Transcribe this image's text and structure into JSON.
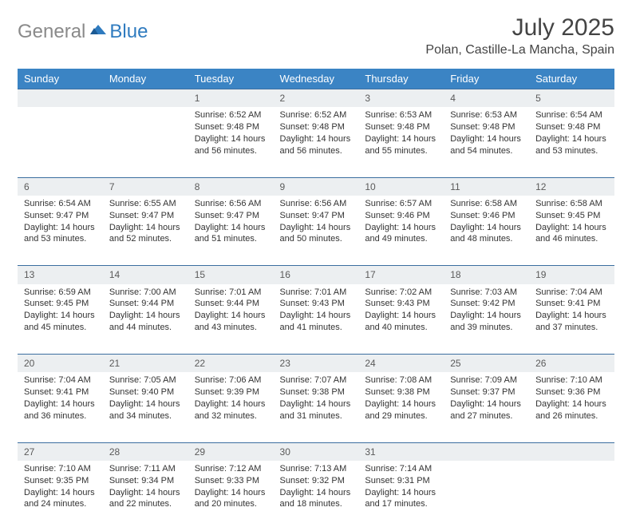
{
  "brand": {
    "g": "General",
    "b": "Blue"
  },
  "title": "July 2025",
  "location": "Polan, Castille-La Mancha, Spain",
  "colors": {
    "header_bg": "#3b84c4",
    "header_text": "#ffffff",
    "daynum_bg": "#eceff1",
    "week_divider": "#3b6ea0",
    "logo_gray": "#8a8a8a",
    "logo_blue": "#2f7bbf"
  },
  "weekdays": [
    "Sunday",
    "Monday",
    "Tuesday",
    "Wednesday",
    "Thursday",
    "Friday",
    "Saturday"
  ],
  "weeks": [
    [
      null,
      null,
      {
        "n": "1",
        "sr": "6:52 AM",
        "ss": "9:48 PM",
        "dl": "14 hours and 56 minutes."
      },
      {
        "n": "2",
        "sr": "6:52 AM",
        "ss": "9:48 PM",
        "dl": "14 hours and 56 minutes."
      },
      {
        "n": "3",
        "sr": "6:53 AM",
        "ss": "9:48 PM",
        "dl": "14 hours and 55 minutes."
      },
      {
        "n": "4",
        "sr": "6:53 AM",
        "ss": "9:48 PM",
        "dl": "14 hours and 54 minutes."
      },
      {
        "n": "5",
        "sr": "6:54 AM",
        "ss": "9:48 PM",
        "dl": "14 hours and 53 minutes."
      }
    ],
    [
      {
        "n": "6",
        "sr": "6:54 AM",
        "ss": "9:47 PM",
        "dl": "14 hours and 53 minutes."
      },
      {
        "n": "7",
        "sr": "6:55 AM",
        "ss": "9:47 PM",
        "dl": "14 hours and 52 minutes."
      },
      {
        "n": "8",
        "sr": "6:56 AM",
        "ss": "9:47 PM",
        "dl": "14 hours and 51 minutes."
      },
      {
        "n": "9",
        "sr": "6:56 AM",
        "ss": "9:47 PM",
        "dl": "14 hours and 50 minutes."
      },
      {
        "n": "10",
        "sr": "6:57 AM",
        "ss": "9:46 PM",
        "dl": "14 hours and 49 minutes."
      },
      {
        "n": "11",
        "sr": "6:58 AM",
        "ss": "9:46 PM",
        "dl": "14 hours and 48 minutes."
      },
      {
        "n": "12",
        "sr": "6:58 AM",
        "ss": "9:45 PM",
        "dl": "14 hours and 46 minutes."
      }
    ],
    [
      {
        "n": "13",
        "sr": "6:59 AM",
        "ss": "9:45 PM",
        "dl": "14 hours and 45 minutes."
      },
      {
        "n": "14",
        "sr": "7:00 AM",
        "ss": "9:44 PM",
        "dl": "14 hours and 44 minutes."
      },
      {
        "n": "15",
        "sr": "7:01 AM",
        "ss": "9:44 PM",
        "dl": "14 hours and 43 minutes."
      },
      {
        "n": "16",
        "sr": "7:01 AM",
        "ss": "9:43 PM",
        "dl": "14 hours and 41 minutes."
      },
      {
        "n": "17",
        "sr": "7:02 AM",
        "ss": "9:43 PM",
        "dl": "14 hours and 40 minutes."
      },
      {
        "n": "18",
        "sr": "7:03 AM",
        "ss": "9:42 PM",
        "dl": "14 hours and 39 minutes."
      },
      {
        "n": "19",
        "sr": "7:04 AM",
        "ss": "9:41 PM",
        "dl": "14 hours and 37 minutes."
      }
    ],
    [
      {
        "n": "20",
        "sr": "7:04 AM",
        "ss": "9:41 PM",
        "dl": "14 hours and 36 minutes."
      },
      {
        "n": "21",
        "sr": "7:05 AM",
        "ss": "9:40 PM",
        "dl": "14 hours and 34 minutes."
      },
      {
        "n": "22",
        "sr": "7:06 AM",
        "ss": "9:39 PM",
        "dl": "14 hours and 32 minutes."
      },
      {
        "n": "23",
        "sr": "7:07 AM",
        "ss": "9:38 PM",
        "dl": "14 hours and 31 minutes."
      },
      {
        "n": "24",
        "sr": "7:08 AM",
        "ss": "9:38 PM",
        "dl": "14 hours and 29 minutes."
      },
      {
        "n": "25",
        "sr": "7:09 AM",
        "ss": "9:37 PM",
        "dl": "14 hours and 27 minutes."
      },
      {
        "n": "26",
        "sr": "7:10 AM",
        "ss": "9:36 PM",
        "dl": "14 hours and 26 minutes."
      }
    ],
    [
      {
        "n": "27",
        "sr": "7:10 AM",
        "ss": "9:35 PM",
        "dl": "14 hours and 24 minutes."
      },
      {
        "n": "28",
        "sr": "7:11 AM",
        "ss": "9:34 PM",
        "dl": "14 hours and 22 minutes."
      },
      {
        "n": "29",
        "sr": "7:12 AM",
        "ss": "9:33 PM",
        "dl": "14 hours and 20 minutes."
      },
      {
        "n": "30",
        "sr": "7:13 AM",
        "ss": "9:32 PM",
        "dl": "14 hours and 18 minutes."
      },
      {
        "n": "31",
        "sr": "7:14 AM",
        "ss": "9:31 PM",
        "dl": "14 hours and 17 minutes."
      },
      null,
      null
    ]
  ],
  "labels": {
    "sunrise": "Sunrise:",
    "sunset": "Sunset:",
    "daylight": "Daylight:"
  }
}
